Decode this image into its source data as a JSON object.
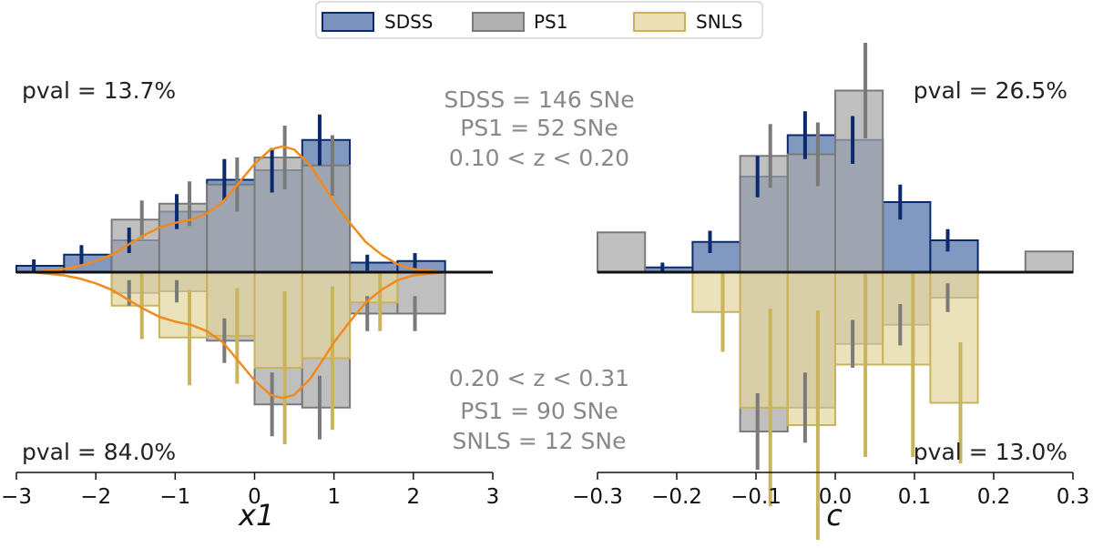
{
  "colors": {
    "SDSS": {
      "fill": "#6b86b6",
      "edge": "#0b2a6e"
    },
    "PS1": {
      "fill": "#a9a9a9",
      "edge": "#7a7a7a"
    },
    "SNLS": {
      "fill": "#e3d49c",
      "edge": "#c9b45c"
    },
    "model": "#f28a1c",
    "baseline": "#111111"
  },
  "legend": [
    "SDSS",
    "PS1",
    "SNLS"
  ],
  "text": {
    "top_stats": [
      "SDSS = 146 SNe",
      "PS1 = 52 SNe",
      "0.10 < z < 0.20"
    ],
    "bottom_stats": [
      "0.20 < z < 0.31",
      "PS1 = 90 SNe",
      "SNLS = 12 SNe"
    ]
  },
  "chart_data": [
    {
      "type": "bar",
      "title": "",
      "xlabel": "x1",
      "ylabel": "",
      "xlim": [
        -3,
        3
      ],
      "ylim": [
        -1.25,
        1.25
      ],
      "xticks": [
        "−3",
        "−2",
        "−1",
        "0",
        "1",
        "2",
        "3"
      ],
      "pval_top": "pval = 13.7%",
      "pval_bottom": "pval = 84.0%",
      "bin_edges": [
        -3,
        -2.4,
        -1.8,
        -1.2,
        -0.6,
        0,
        0.6,
        1.2,
        1.8,
        2.4
      ],
      "top_series": [
        {
          "name": "SDSS",
          "values": [
            0.04,
            0.11,
            0.2,
            0.38,
            0.58,
            0.64,
            0.83,
            0.06,
            0.07
          ],
          "errors": [
            0.04,
            0.06,
            0.08,
            0.11,
            0.13,
            0.14,
            0.16,
            0.05,
            0.05
          ]
        },
        {
          "name": "PS1",
          "values": [
            0.0,
            0.0,
            0.33,
            0.43,
            0.55,
            0.72,
            0.67,
            0.0,
            0.0
          ],
          "errors": [
            0.0,
            0.0,
            0.12,
            0.14,
            0.17,
            0.2,
            0.19,
            0.0,
            0.0
          ]
        }
      ],
      "bottom_series": [
        {
          "name": "PS1",
          "values": [
            0.0,
            0.0,
            0.13,
            0.12,
            0.43,
            0.83,
            0.85,
            0.26,
            0.26
          ],
          "errors": [
            0.0,
            0.0,
            0.08,
            0.07,
            0.14,
            0.2,
            0.2,
            0.11,
            0.11
          ]
        },
        {
          "name": "SNLS",
          "values": [
            0.0,
            0.0,
            0.21,
            0.41,
            0.4,
            0.6,
            0.54,
            0.19,
            0.0
          ],
          "errors": [
            0.0,
            0.0,
            0.21,
            0.3,
            0.3,
            0.48,
            0.45,
            0.18,
            0.0
          ]
        }
      ],
      "model_curve": {
        "amplitude": 0.77,
        "x": [
          -2.8,
          -2.6,
          -2.4,
          -2.2,
          -2.0,
          -1.8,
          -1.6,
          -1.4,
          -1.2,
          -1.0,
          -0.8,
          -0.6,
          -0.4,
          -0.2,
          0.0,
          0.2,
          0.35,
          0.5,
          0.7,
          0.9,
          1.0,
          1.2,
          1.4,
          1.6,
          1.8,
          2.0,
          2.2,
          2.4
        ],
        "y": [
          0.0,
          0.01,
          0.02,
          0.04,
          0.07,
          0.11,
          0.17,
          0.23,
          0.28,
          0.31,
          0.33,
          0.37,
          0.44,
          0.56,
          0.68,
          0.77,
          0.79,
          0.77,
          0.67,
          0.52,
          0.44,
          0.31,
          0.19,
          0.11,
          0.05,
          0.02,
          0.01,
          0.0
        ]
      }
    },
    {
      "type": "bar",
      "title": "",
      "xlabel": "c",
      "ylabel": "",
      "xlim": [
        -0.3,
        0.3
      ],
      "ylim": [
        -1.25,
        1.25
      ],
      "xticks": [
        "−0.3",
        "−0.2",
        "−0.1",
        "0.0",
        "0.1",
        "0.2",
        "0.3"
      ],
      "pval_top": "pval = 26.5%",
      "pval_bottom": "pval = 13.0%",
      "bin_edges": [
        -0.3,
        -0.24,
        -0.18,
        -0.12,
        -0.06,
        0,
        0.06,
        0.12,
        0.18,
        0.24,
        0.3
      ],
      "top_series": [
        {
          "name": "SDSS",
          "values": [
            0.0,
            0.03,
            0.19,
            0.6,
            0.86,
            0.83,
            0.44,
            0.2,
            0.0,
            0.0
          ],
          "errors": [
            0.0,
            0.03,
            0.07,
            0.13,
            0.15,
            0.15,
            0.11,
            0.07,
            0.0,
            0.0
          ],
          "offsets": [
            0,
            0,
            0,
            0,
            0,
            0,
            0,
            0,
            0,
            0
          ]
        },
        {
          "name": "PS1",
          "values": [
            0.25,
            0.0,
            0.0,
            0.73,
            0.74,
            1.14,
            0.0,
            0.0,
            0.0,
            0.13
          ],
          "errors": [
            0.0,
            0.0,
            0.0,
            0.2,
            0.2,
            0.3,
            0.0,
            0.0,
            0.0,
            0.0
          ],
          "offsets": [
            0,
            0,
            0,
            0,
            0,
            0,
            0,
            0,
            0,
            0
          ]
        }
      ],
      "bottom_series": [
        {
          "name": "PS1",
          "values": [
            0.0,
            0.0,
            0.0,
            1.0,
            0.85,
            0.45,
            0.33,
            0.16,
            0.0,
            0.0
          ],
          "errors": [
            0.0,
            0.0,
            0.0,
            0.24,
            0.22,
            0.15,
            0.13,
            0.09,
            0.0,
            0.0
          ],
          "offsets": [
            0,
            0,
            0,
            0,
            0,
            0,
            0,
            0,
            0,
            0
          ]
        },
        {
          "name": "SNLS",
          "values": [
            0.0,
            0.0,
            0.25,
            0.85,
            0.96,
            0.58,
            0.58,
            0.82,
            0.0,
            0.0
          ],
          "errors": [
            0.0,
            0.0,
            0.25,
            0.62,
            0.72,
            0.58,
            0.58,
            0.38,
            0.0,
            0.0
          ],
          "offsets": [
            0,
            0,
            0,
            0,
            0,
            0,
            0,
            0,
            0,
            0
          ]
        }
      ]
    }
  ]
}
